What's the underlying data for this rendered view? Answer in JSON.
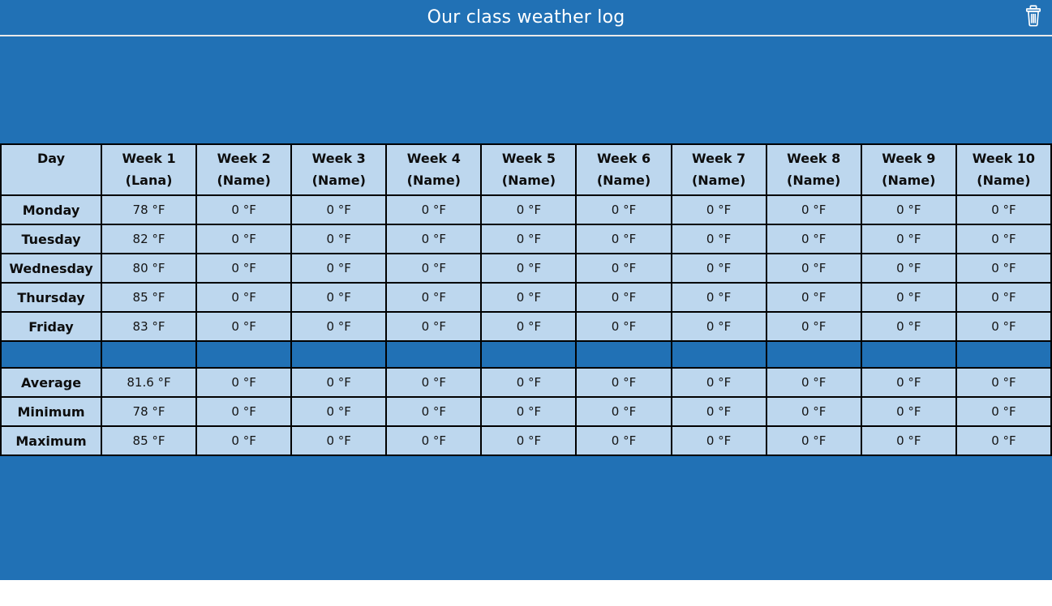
{
  "titlebar": {
    "title": "Our class weather log",
    "trash_icon": "trash-icon"
  },
  "colors": {
    "background_blue": "#2171B5",
    "cell_light_blue": "#BDD7EE",
    "border_black": "#000000",
    "title_text": "#FFFFFF",
    "titlebar_divider": "#E9E9E9"
  },
  "table": {
    "columns": [
      {
        "line1": "Day",
        "line2": ""
      },
      {
        "line1": "Week 1",
        "line2": "(Lana)"
      },
      {
        "line1": "Week 2",
        "line2": "(Name)"
      },
      {
        "line1": "Week 3",
        "line2": "(Name)"
      },
      {
        "line1": "Week 4",
        "line2": "(Name)"
      },
      {
        "line1": "Week 5",
        "line2": "(Name)"
      },
      {
        "line1": "Week 6",
        "line2": "(Name)"
      },
      {
        "line1": "Week 7",
        "line2": "(Name)"
      },
      {
        "line1": "Week 8",
        "line2": "(Name)"
      },
      {
        "line1": "Week 9",
        "line2": "(Name)"
      },
      {
        "line1": "Week 10",
        "line2": "(Name)"
      }
    ],
    "day_rows": [
      {
        "label": "Monday",
        "values": [
          "78 °F",
          "0 °F",
          "0 °F",
          "0 °F",
          "0 °F",
          "0 °F",
          "0 °F",
          "0 °F",
          "0 °F",
          "0 °F"
        ]
      },
      {
        "label": "Tuesday",
        "values": [
          "82 °F",
          "0 °F",
          "0 °F",
          "0 °F",
          "0 °F",
          "0 °F",
          "0 °F",
          "0 °F",
          "0 °F",
          "0 °F"
        ]
      },
      {
        "label": "Wednesday",
        "values": [
          "80 °F",
          "0 °F",
          "0 °F",
          "0 °F",
          "0 °F",
          "0 °F",
          "0 °F",
          "0 °F",
          "0 °F",
          "0 °F"
        ]
      },
      {
        "label": "Thursday",
        "values": [
          "85 °F",
          "0 °F",
          "0 °F",
          "0 °F",
          "0 °F",
          "0 °F",
          "0 °F",
          "0 °F",
          "0 °F",
          "0 °F"
        ]
      },
      {
        "label": "Friday",
        "values": [
          "83 °F",
          "0 °F",
          "0 °F",
          "0 °F",
          "0 °F",
          "0 °F",
          "0 °F",
          "0 °F",
          "0 °F",
          "0 °F"
        ]
      }
    ],
    "stat_rows": [
      {
        "label": "Average",
        "values": [
          "81.6 °F",
          "0 °F",
          "0 °F",
          "0 °F",
          "0 °F",
          "0 °F",
          "0 °F",
          "0 °F",
          "0 °F",
          "0 °F"
        ]
      },
      {
        "label": "Minimum",
        "values": [
          "78 °F",
          "0 °F",
          "0 °F",
          "0 °F",
          "0 °F",
          "0 °F",
          "0 °F",
          "0 °F",
          "0 °F",
          "0 °F"
        ]
      },
      {
        "label": "Maximum",
        "values": [
          "85 °F",
          "0 °F",
          "0 °F",
          "0 °F",
          "0 °F",
          "0 °F",
          "0 °F",
          "0 °F",
          "0 °F",
          "0 °F"
        ]
      }
    ]
  }
}
